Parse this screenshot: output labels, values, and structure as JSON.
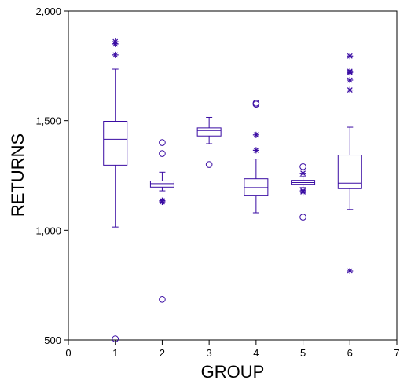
{
  "chart_data": {
    "type": "box",
    "xlabel": "GROUP",
    "ylabel": "RETURNS",
    "xlim": [
      0,
      7
    ],
    "ylim": [
      500,
      2000
    ],
    "x_ticks": [
      0,
      1,
      2,
      3,
      4,
      5,
      6,
      7
    ],
    "x_tick_labels": [
      "0",
      "1",
      "2",
      "3",
      "4",
      "5",
      "6",
      "7"
    ],
    "y_ticks": [
      500,
      1000,
      1500,
      2000
    ],
    "y_tick_labels": [
      "500",
      "1,000",
      "1,500",
      "2,000"
    ],
    "grid": false,
    "colors": {
      "marks": "#3a0ca3",
      "axes": "#000000"
    },
    "groups": [
      {
        "x": 1,
        "whisker_low": 1015,
        "q1": 1297,
        "median": 1415,
        "q3": 1497,
        "whisker_high": 1735,
        "outliers_far": [
          1850,
          1860,
          1800
        ],
        "outliers_near": [
          505
        ]
      },
      {
        "x": 2,
        "whisker_low": 1180,
        "q1": 1197,
        "median": 1213,
        "q3": 1225,
        "whisker_high": 1265,
        "outliers_far": [
          1135,
          1130
        ],
        "outliers_near": [
          1400,
          1350,
          685
        ]
      },
      {
        "x": 3,
        "whisker_low": 1395,
        "q1": 1430,
        "median": 1455,
        "q3": 1467,
        "whisker_high": 1515,
        "outliers_far": [],
        "outliers_near": [
          1300
        ]
      },
      {
        "x": 4,
        "whisker_low": 1080,
        "q1": 1160,
        "median": 1195,
        "q3": 1235,
        "whisker_high": 1325,
        "outliers_far": [
          1435,
          1365
        ],
        "outliers_near": [
          1580,
          1575
        ]
      },
      {
        "x": 5,
        "whisker_low": 1195,
        "q1": 1210,
        "median": 1218,
        "q3": 1228,
        "whisker_high": 1245,
        "outliers_far": [
          1260,
          1180,
          1175
        ],
        "outliers_near": [
          1290,
          1060
        ]
      },
      {
        "x": 6,
        "whisker_low": 1095,
        "q1": 1190,
        "median": 1215,
        "q3": 1343,
        "whisker_high": 1470,
        "outliers_far": [
          1795,
          1725,
          1720,
          1685,
          1640,
          815
        ],
        "outliers_near": []
      }
    ]
  }
}
